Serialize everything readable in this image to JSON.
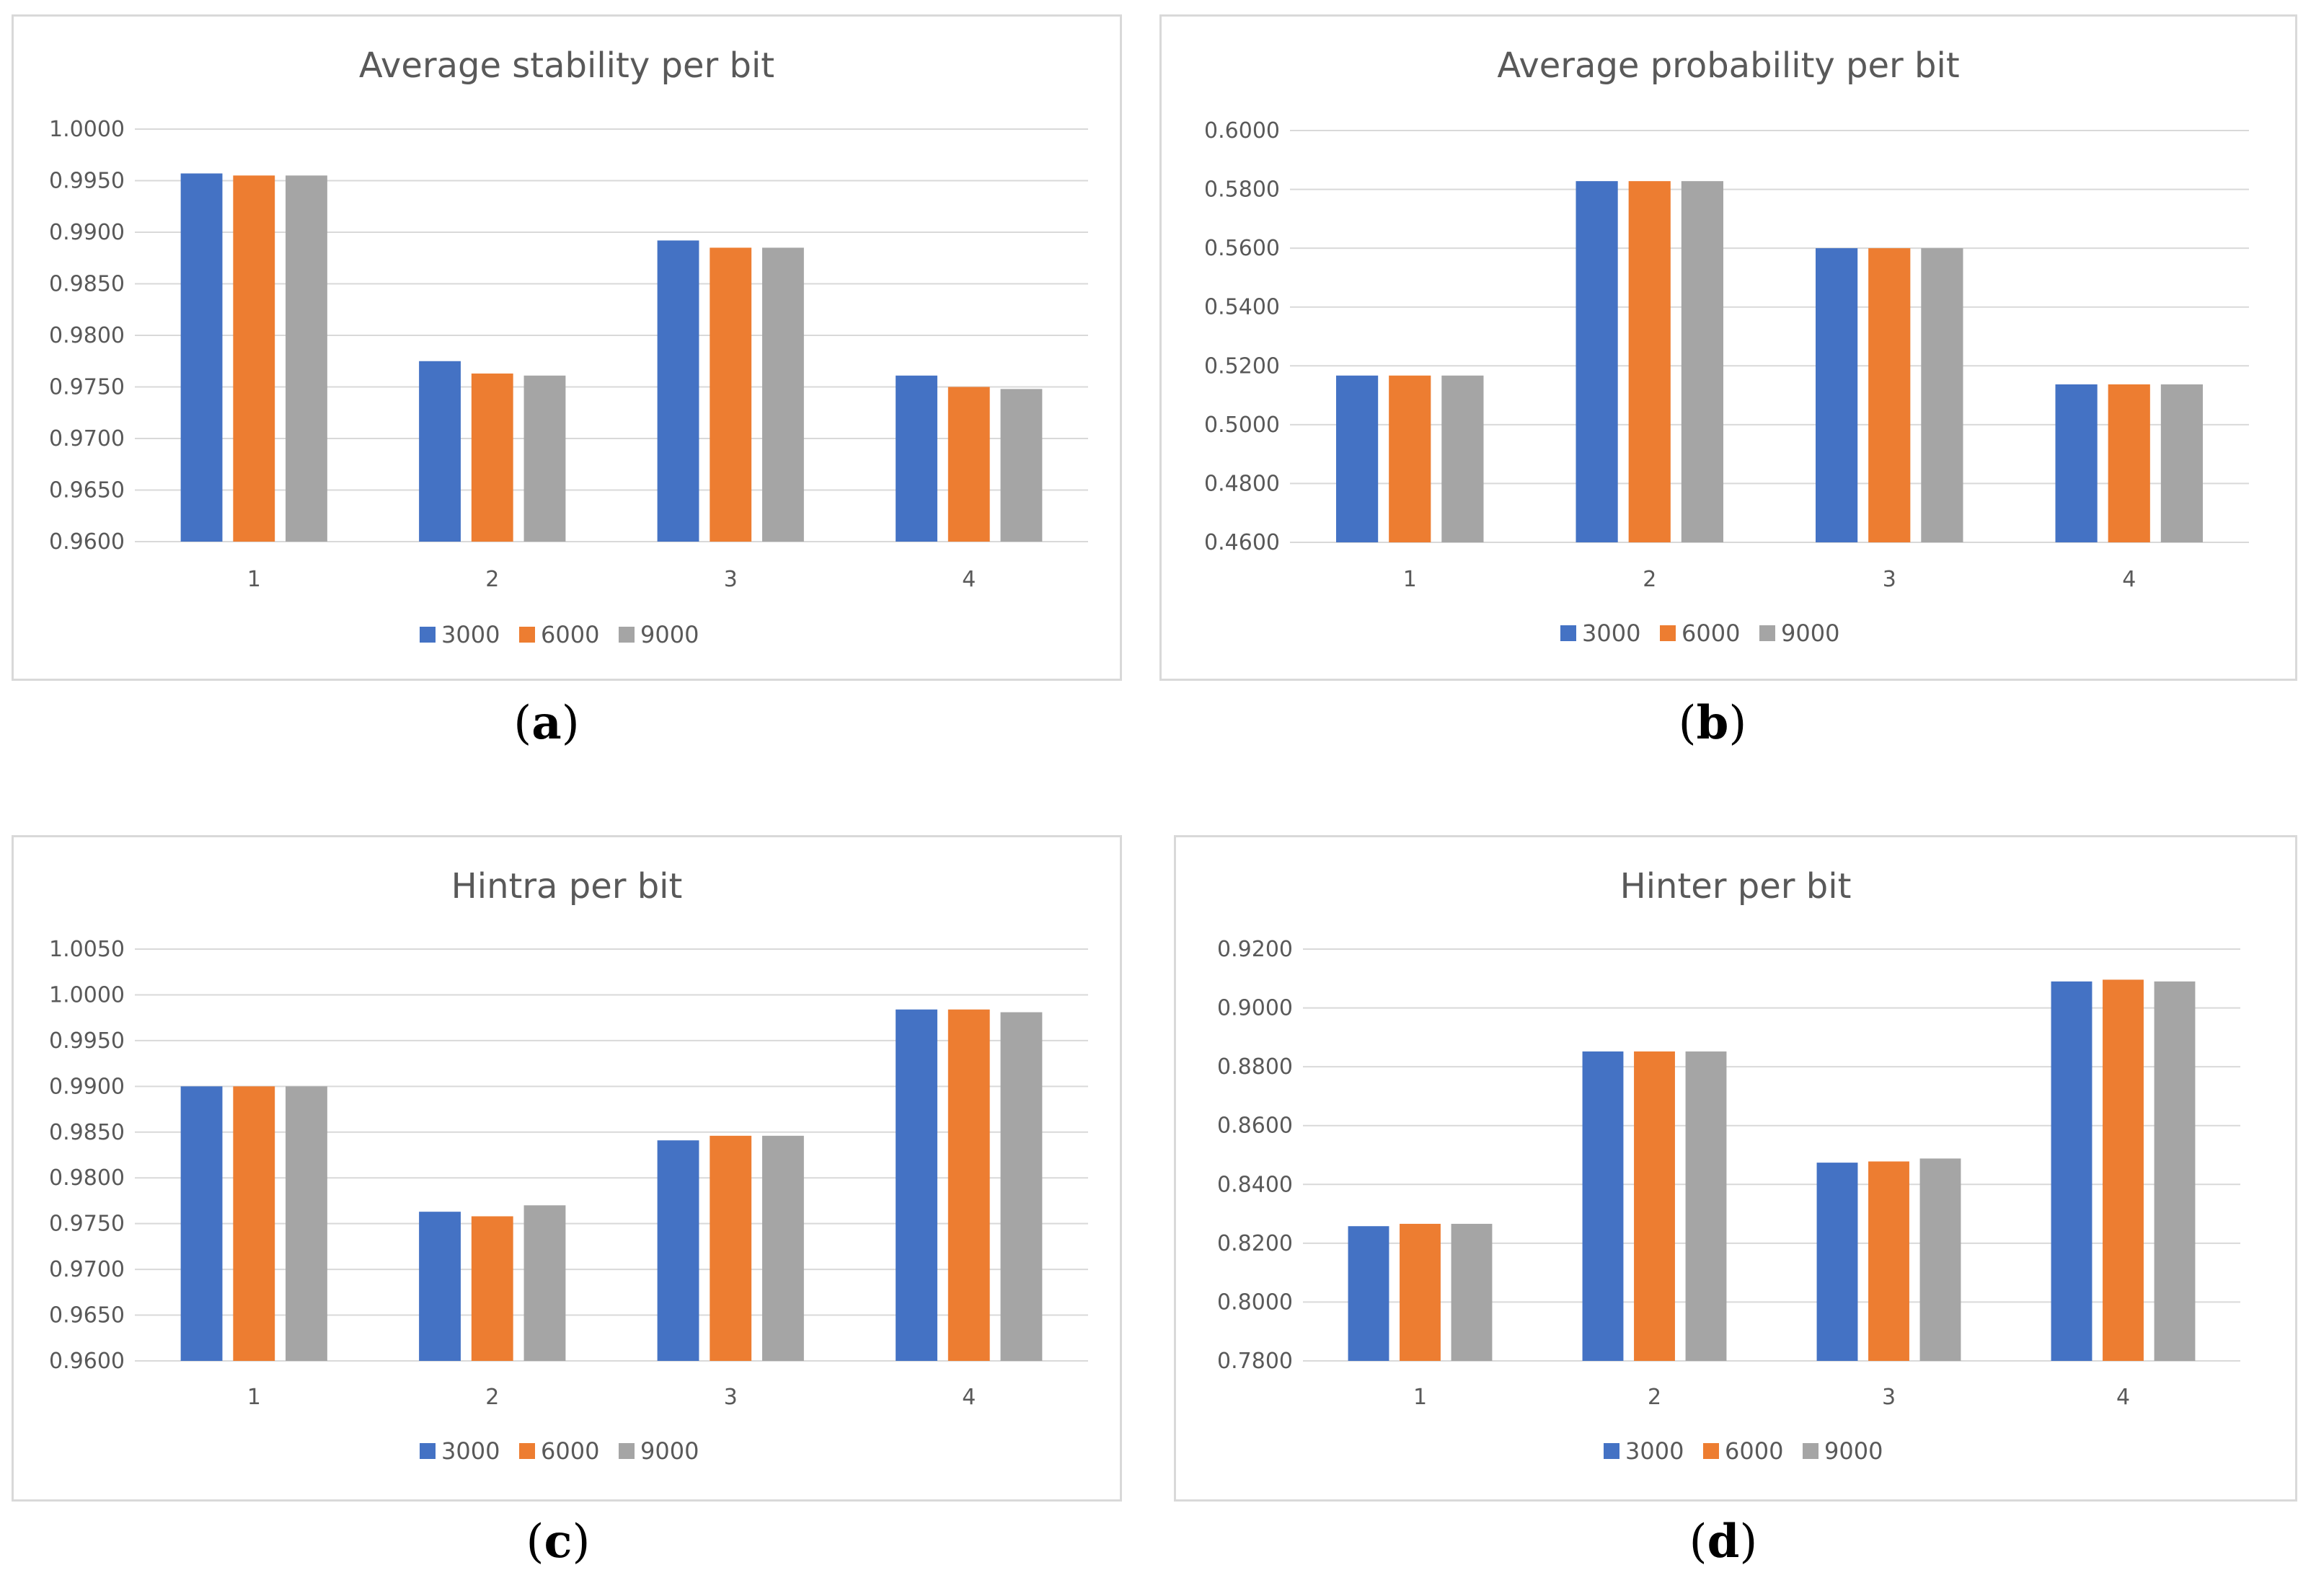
{
  "chart_data": [
    {
      "panel": "a",
      "type": "bar",
      "title": "Average stability per bit",
      "caption": "a",
      "categories": [
        "1",
        "2",
        "3",
        "4"
      ],
      "ylim": [
        0.96,
        1.0
      ],
      "yticks": [
        "0.9600",
        "0.9650",
        "0.9700",
        "0.9750",
        "0.9800",
        "0.9850",
        "0.9900",
        "0.9950",
        "1.0000"
      ],
      "grid": true,
      "legend_position": "bottom",
      "series": [
        {
          "name": "3000",
          "color": "#4472C4",
          "values": [
            0.9957,
            0.9775,
            0.9892,
            0.9761
          ]
        },
        {
          "name": "6000",
          "color": "#ED7D31",
          "values": [
            0.9955,
            0.9763,
            0.9885,
            0.975
          ]
        },
        {
          "name": "9000",
          "color": "#A5A5A5",
          "values": [
            0.9955,
            0.9761,
            0.9885,
            0.9748
          ]
        }
      ]
    },
    {
      "panel": "b",
      "type": "bar",
      "title": "Average probability per bit",
      "caption": "b",
      "categories": [
        "1",
        "2",
        "3",
        "4"
      ],
      "ylim": [
        0.46,
        0.6
      ],
      "yticks": [
        "0.4600",
        "0.4800",
        "0.5000",
        "0.5200",
        "0.5400",
        "0.5600",
        "0.5800",
        "0.6000"
      ],
      "grid": true,
      "legend_position": "bottom",
      "series": [
        {
          "name": "3000",
          "color": "#4472C4",
          "values": [
            0.5167,
            0.5828,
            0.56,
            0.5137
          ]
        },
        {
          "name": "6000",
          "color": "#ED7D31",
          "values": [
            0.5167,
            0.5828,
            0.56,
            0.5137
          ]
        },
        {
          "name": "9000",
          "color": "#A5A5A5",
          "values": [
            0.5167,
            0.5828,
            0.56,
            0.5137
          ]
        }
      ]
    },
    {
      "panel": "c",
      "type": "bar",
      "title": "Hintra per bit",
      "caption": "c",
      "categories": [
        "1",
        "2",
        "3",
        "4"
      ],
      "ylim": [
        0.96,
        1.005
      ],
      "yticks": [
        "0.9600",
        "0.9650",
        "0.9700",
        "0.9750",
        "0.9800",
        "0.9850",
        "0.9900",
        "0.9950",
        "1.0000",
        "1.0050"
      ],
      "grid": true,
      "legend_position": "bottom",
      "series": [
        {
          "name": "3000",
          "color": "#4472C4",
          "values": [
            0.99,
            0.9763,
            0.9841,
            0.9984
          ]
        },
        {
          "name": "6000",
          "color": "#ED7D31",
          "values": [
            0.99,
            0.9758,
            0.9846,
            0.9984
          ]
        },
        {
          "name": "9000",
          "color": "#A5A5A5",
          "values": [
            0.99,
            0.977,
            0.9846,
            0.9981
          ]
        }
      ]
    },
    {
      "panel": "d",
      "type": "bar",
      "title": "Hinter per bit",
      "caption": "d",
      "categories": [
        "1",
        "2",
        "3",
        "4"
      ],
      "ylim": [
        0.78,
        0.92
      ],
      "yticks": [
        "0.7800",
        "0.8000",
        "0.8200",
        "0.8400",
        "0.8600",
        "0.8800",
        "0.9000",
        "0.9200"
      ],
      "grid": true,
      "legend_position": "bottom",
      "series": [
        {
          "name": "3000",
          "color": "#4472C4",
          "values": [
            0.8258,
            0.8852,
            0.8474,
            0.909
          ]
        },
        {
          "name": "6000",
          "color": "#ED7D31",
          "values": [
            0.8266,
            0.8852,
            0.8478,
            0.9096
          ]
        },
        {
          "name": "9000",
          "color": "#A5A5A5",
          "values": [
            0.8266,
            0.8852,
            0.8488,
            0.909
          ]
        }
      ]
    }
  ]
}
